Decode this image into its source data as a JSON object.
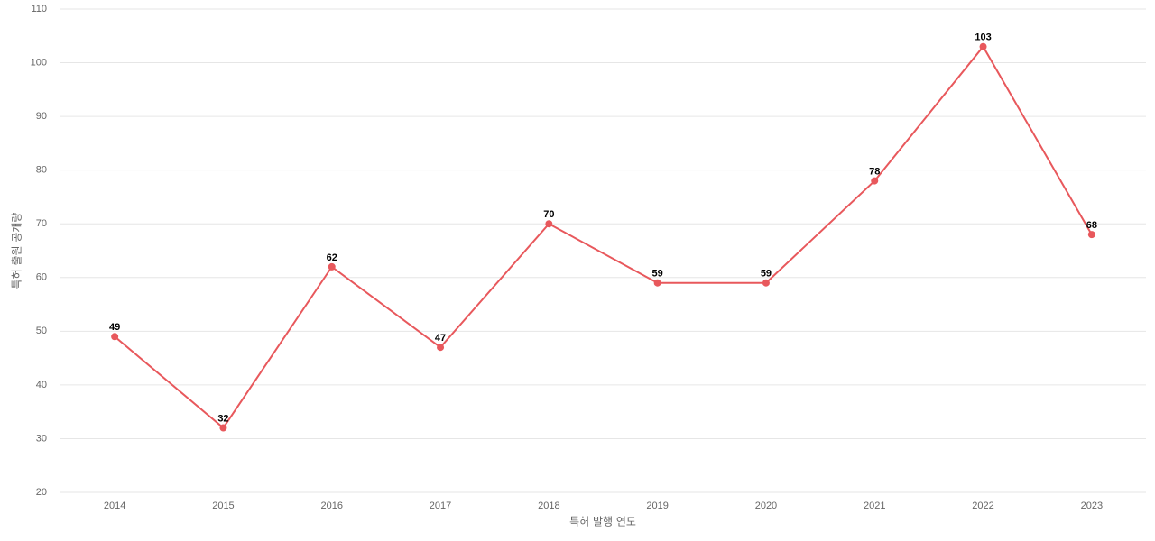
{
  "chart_data": {
    "type": "line",
    "x_label": "특허 발행 연도",
    "y_label": "특허 출원 공개량",
    "categories": [
      "2014",
      "2015",
      "2016",
      "2017",
      "2018",
      "2019",
      "2020",
      "2021",
      "2022",
      "2023"
    ],
    "values": [
      49,
      32,
      62,
      47,
      70,
      59,
      59,
      78,
      103,
      68
    ],
    "color": "#e8585c",
    "ylim": [
      20,
      110
    ],
    "yticks": [
      20,
      30,
      40,
      50,
      60,
      70,
      80,
      90,
      100,
      110
    ],
    "grid": true,
    "data_labels": true
  }
}
